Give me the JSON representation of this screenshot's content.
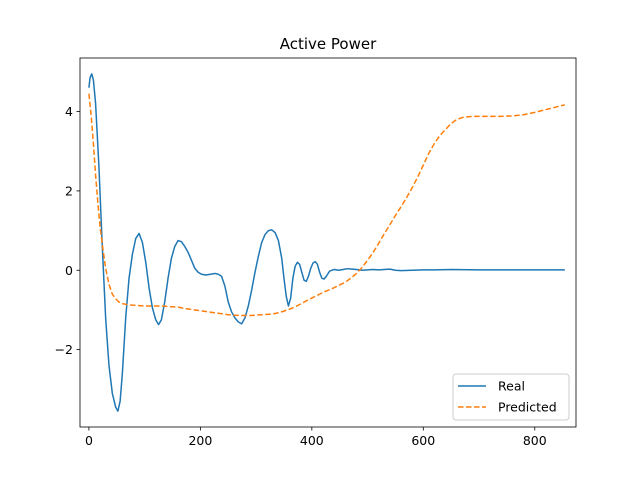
{
  "chart_data": {
    "type": "line",
    "title": "Active Power",
    "xlabel": "",
    "ylabel": "",
    "xlim": [
      -16,
      874
    ],
    "ylim": [
      -3.95,
      5.35
    ],
    "xticks": [
      0,
      200,
      400,
      600,
      800
    ],
    "yticks": [
      -2,
      0,
      2,
      4
    ],
    "xtick_labels": [
      "0",
      "200",
      "400",
      "600",
      "800"
    ],
    "ytick_labels": [
      "−2",
      "0",
      "2",
      "4"
    ],
    "grid": false,
    "legend_position": "lower-right",
    "series": [
      {
        "name": "Real",
        "color": "#1f77b4",
        "style": "solid",
        "points": [
          [
            0,
            4.6
          ],
          [
            2,
            4.85
          ],
          [
            5,
            4.95
          ],
          [
            8,
            4.8
          ],
          [
            12,
            4.2
          ],
          [
            18,
            2.6
          ],
          [
            24,
            0.6
          ],
          [
            30,
            -1.2
          ],
          [
            36,
            -2.4
          ],
          [
            42,
            -3.1
          ],
          [
            48,
            -3.45
          ],
          [
            52,
            -3.55
          ],
          [
            56,
            -3.3
          ],
          [
            60,
            -2.6
          ],
          [
            66,
            -1.2
          ],
          [
            72,
            -0.2
          ],
          [
            78,
            0.4
          ],
          [
            84,
            0.8
          ],
          [
            90,
            0.93
          ],
          [
            96,
            0.7
          ],
          [
            102,
            0.2
          ],
          [
            108,
            -0.45
          ],
          [
            114,
            -0.95
          ],
          [
            120,
            -1.25
          ],
          [
            125,
            -1.37
          ],
          [
            130,
            -1.25
          ],
          [
            136,
            -0.8
          ],
          [
            142,
            -0.2
          ],
          [
            148,
            0.3
          ],
          [
            154,
            0.6
          ],
          [
            160,
            0.75
          ],
          [
            166,
            0.72
          ],
          [
            172,
            0.6
          ],
          [
            178,
            0.45
          ],
          [
            184,
            0.25
          ],
          [
            190,
            0.05
          ],
          [
            196,
            -0.05
          ],
          [
            202,
            -0.1
          ],
          [
            210,
            -0.12
          ],
          [
            218,
            -0.1
          ],
          [
            226,
            -0.08
          ],
          [
            232,
            -0.1
          ],
          [
            238,
            -0.15
          ],
          [
            244,
            -0.4
          ],
          [
            250,
            -0.8
          ],
          [
            256,
            -1.05
          ],
          [
            262,
            -1.2
          ],
          [
            268,
            -1.3
          ],
          [
            274,
            -1.35
          ],
          [
            280,
            -1.2
          ],
          [
            286,
            -0.9
          ],
          [
            292,
            -0.5
          ],
          [
            298,
            -0.05
          ],
          [
            304,
            0.35
          ],
          [
            310,
            0.7
          ],
          [
            316,
            0.9
          ],
          [
            322,
            1.0
          ],
          [
            328,
            1.02
          ],
          [
            334,
            0.95
          ],
          [
            340,
            0.75
          ],
          [
            346,
            0.3
          ],
          [
            350,
            -0.2
          ],
          [
            354,
            -0.65
          ],
          [
            358,
            -0.9
          ],
          [
            362,
            -0.7
          ],
          [
            366,
            -0.2
          ],
          [
            370,
            0.1
          ],
          [
            374,
            0.2
          ],
          [
            378,
            0.15
          ],
          [
            382,
            -0.05
          ],
          [
            386,
            -0.25
          ],
          [
            390,
            -0.28
          ],
          [
            394,
            -0.15
          ],
          [
            398,
            0.05
          ],
          [
            402,
            0.18
          ],
          [
            406,
            0.22
          ],
          [
            410,
            0.15
          ],
          [
            414,
            -0.05
          ],
          [
            418,
            -0.2
          ],
          [
            422,
            -0.22
          ],
          [
            426,
            -0.15
          ],
          [
            432,
            -0.02
          ],
          [
            440,
            0.02
          ],
          [
            448,
            0.0
          ],
          [
            456,
            0.02
          ],
          [
            464,
            0.04
          ],
          [
            472,
            0.03
          ],
          [
            480,
            0.02
          ],
          [
            490,
            0.0
          ],
          [
            500,
            0.01
          ],
          [
            510,
            0.02
          ],
          [
            520,
            0.01
          ],
          [
            530,
            0.02
          ],
          [
            540,
            0.03
          ],
          [
            550,
            0.0
          ],
          [
            560,
            -0.01
          ],
          [
            580,
            0.0
          ],
          [
            600,
            0.01
          ],
          [
            620,
            0.01
          ],
          [
            650,
            0.02
          ],
          [
            700,
            0.01
          ],
          [
            750,
            0.01
          ],
          [
            800,
            0.01
          ],
          [
            854,
            0.01
          ]
        ]
      },
      {
        "name": "Predicted",
        "color": "#ff7f0e",
        "style": "dashed",
        "points": [
          [
            0,
            4.45
          ],
          [
            4,
            3.9
          ],
          [
            8,
            3.2
          ],
          [
            12,
            2.4
          ],
          [
            16,
            1.7
          ],
          [
            20,
            1.1
          ],
          [
            25,
            0.55
          ],
          [
            30,
            0.05
          ],
          [
            36,
            -0.35
          ],
          [
            42,
            -0.6
          ],
          [
            48,
            -0.72
          ],
          [
            54,
            -0.8
          ],
          [
            60,
            -0.84
          ],
          [
            70,
            -0.87
          ],
          [
            80,
            -0.88
          ],
          [
            90,
            -0.89
          ],
          [
            100,
            -0.9
          ],
          [
            110,
            -0.9
          ],
          [
            120,
            -0.9
          ],
          [
            130,
            -0.9
          ],
          [
            140,
            -0.91
          ],
          [
            150,
            -0.92
          ],
          [
            160,
            -0.93
          ],
          [
            170,
            -0.96
          ],
          [
            180,
            -0.98
          ],
          [
            190,
            -1.0
          ],
          [
            200,
            -1.02
          ],
          [
            210,
            -1.04
          ],
          [
            220,
            -1.06
          ],
          [
            230,
            -1.08
          ],
          [
            240,
            -1.1
          ],
          [
            250,
            -1.12
          ],
          [
            260,
            -1.13
          ],
          [
            270,
            -1.14
          ],
          [
            280,
            -1.14
          ],
          [
            290,
            -1.14
          ],
          [
            300,
            -1.13
          ],
          [
            310,
            -1.12
          ],
          [
            320,
            -1.11
          ],
          [
            330,
            -1.1
          ],
          [
            340,
            -1.07
          ],
          [
            350,
            -1.03
          ],
          [
            360,
            -0.98
          ],
          [
            370,
            -0.92
          ],
          [
            380,
            -0.85
          ],
          [
            390,
            -0.77
          ],
          [
            400,
            -0.7
          ],
          [
            410,
            -0.63
          ],
          [
            420,
            -0.56
          ],
          [
            430,
            -0.5
          ],
          [
            440,
            -0.44
          ],
          [
            450,
            -0.37
          ],
          [
            460,
            -0.3
          ],
          [
            470,
            -0.2
          ],
          [
            480,
            -0.08
          ],
          [
            490,
            0.07
          ],
          [
            500,
            0.25
          ],
          [
            510,
            0.45
          ],
          [
            520,
            0.68
          ],
          [
            530,
            0.92
          ],
          [
            540,
            1.15
          ],
          [
            550,
            1.38
          ],
          [
            560,
            1.6
          ],
          [
            570,
            1.83
          ],
          [
            580,
            2.08
          ],
          [
            590,
            2.35
          ],
          [
            600,
            2.65
          ],
          [
            610,
            2.95
          ],
          [
            620,
            3.2
          ],
          [
            630,
            3.4
          ],
          [
            640,
            3.55
          ],
          [
            650,
            3.7
          ],
          [
            660,
            3.8
          ],
          [
            670,
            3.85
          ],
          [
            680,
            3.87
          ],
          [
            690,
            3.88
          ],
          [
            700,
            3.88
          ],
          [
            720,
            3.88
          ],
          [
            740,
            3.88
          ],
          [
            760,
            3.89
          ],
          [
            780,
            3.92
          ],
          [
            800,
            3.98
          ],
          [
            820,
            4.05
          ],
          [
            840,
            4.12
          ],
          [
            854,
            4.17
          ]
        ]
      }
    ]
  }
}
